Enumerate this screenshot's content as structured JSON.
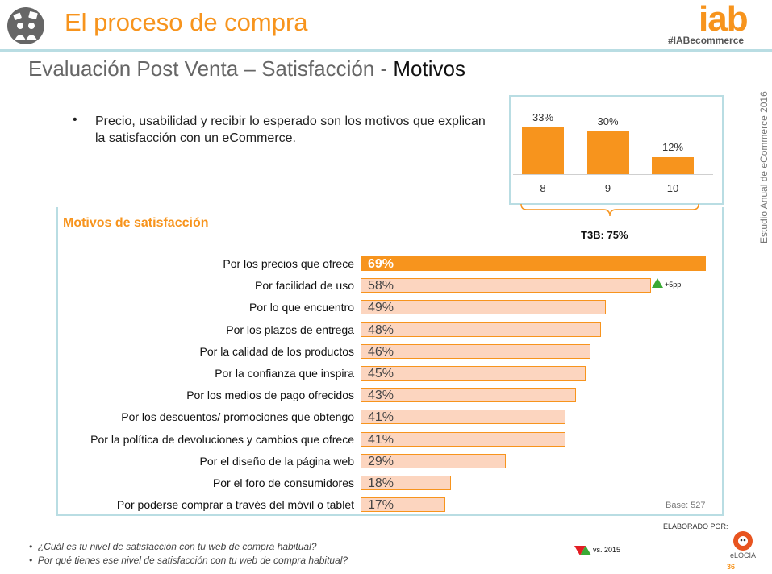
{
  "header": {
    "title": "El proceso de compra",
    "logo": "iab",
    "hashtag": "#IABecommerce",
    "subtitle_prefix": "Evaluación Post Venta – Satisfacción - ",
    "subtitle_strong": "Motivos",
    "side_text": "Estudio Anual de eCommerce 2016",
    "icon": "shopping-people-icon"
  },
  "bullet": {
    "text": "Precio, usabilidad y recibir lo esperado son los motivos que explican la satisfacción con un eCommerce."
  },
  "colors": {
    "accent": "#f7941d",
    "bar_light": "#fcd5bf",
    "frame": "#b9dde3",
    "up": "#3aaa35",
    "down": "#e31e24"
  },
  "chart_data": [
    {
      "type": "bar",
      "categories": [
        "8",
        "9",
        "10"
      ],
      "values": [
        33,
        30,
        12
      ],
      "value_labels": [
        "33%",
        "30%",
        "12%"
      ],
      "ylim": [
        0,
        35
      ],
      "annotation": "T3B: 75%"
    },
    {
      "type": "bar",
      "orientation": "horizontal",
      "title": "Motivos de satisfacción",
      "categories": [
        "Por los precios que ofrece",
        "Por facilidad de uso",
        "Por lo que encuentro",
        "Por los plazos de entrega",
        "Por la calidad de los productos",
        "Por la confianza que inspira",
        "Por los medios de pago ofrecidos",
        "Por los descuentos/ promociones que obtengo",
        "Por la política de devoluciones y cambios que ofrece",
        "Por el diseño de la página web",
        "Por el foro de consumidores",
        "Por poderse comprar a través del móvil o tablet"
      ],
      "values": [
        69,
        58,
        49,
        48,
        46,
        45,
        43,
        41,
        41,
        29,
        18,
        17
      ],
      "value_labels": [
        "69%",
        "58%",
        "49%",
        "48%",
        "46%",
        "45%",
        "43%",
        "41%",
        "41%",
        "29%",
        "18%",
        "17%"
      ],
      "xlim": [
        0,
        69
      ],
      "highlight_index": 0,
      "change_annotation": {
        "index": 1,
        "direction": "up",
        "text": "+5pp"
      },
      "base": "Base: 527"
    }
  ],
  "footer": {
    "elaborado": "ELABORADO POR:",
    "questions": [
      "¿Cuál es tu nivel de satisfacción con tu web de compra habitual?",
      "Por qué tienes ese nivel de satisfacción con tu web de compra habitual?"
    ],
    "legend": "vs. 2015",
    "brand": "eLOCIA",
    "page": "36"
  }
}
